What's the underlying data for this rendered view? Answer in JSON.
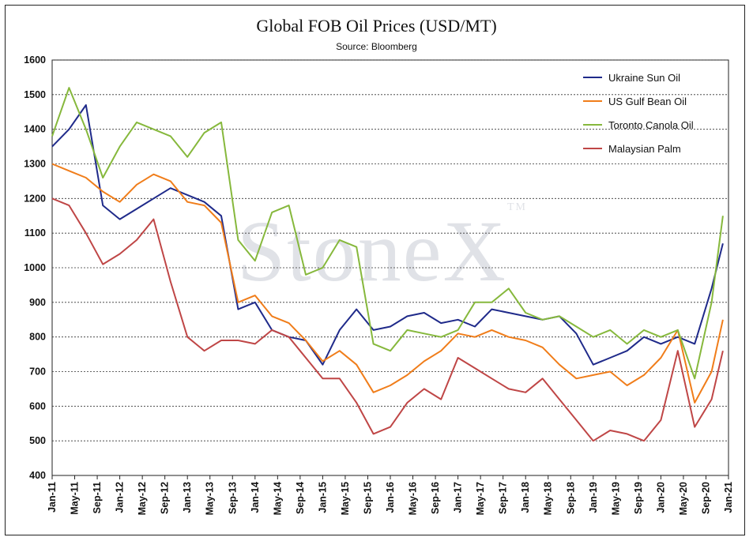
{
  "chart_data": {
    "type": "line",
    "title": "Global FOB Oil Prices (USD/MT)",
    "subtitle": "Source: Bloomberg",
    "watermark": "StoneX",
    "watermark_mark": "TM",
    "ylim": [
      400,
      1600
    ],
    "yticks": [
      400,
      500,
      600,
      700,
      800,
      900,
      1000,
      1100,
      1200,
      1300,
      1400,
      1500,
      1600
    ],
    "xlim": [
      "2011-01",
      "2021-01"
    ],
    "xticks": [
      "Jan-11",
      "May-11",
      "Sep-11",
      "Jan-12",
      "May-12",
      "Sep-12",
      "Jan-13",
      "May-13",
      "Sep-13",
      "Jan-14",
      "May-14",
      "Sep-14",
      "Jan-15",
      "May-15",
      "Sep-15",
      "Jan-16",
      "May-16",
      "Sep-16",
      "Jan-17",
      "May-17",
      "Sep-17",
      "Jan-18",
      "May-18",
      "Sep-18",
      "Jan-19",
      "May-19",
      "Sep-19",
      "Jan-20",
      "May-20",
      "Sep-20",
      "Jan-21"
    ],
    "grid": true,
    "legend_position": "top-right",
    "x": [
      "2011-01",
      "2011-04",
      "2011-07",
      "2011-10",
      "2012-01",
      "2012-04",
      "2012-07",
      "2012-10",
      "2013-01",
      "2013-04",
      "2013-07",
      "2013-10",
      "2014-01",
      "2014-04",
      "2014-07",
      "2014-10",
      "2015-01",
      "2015-04",
      "2015-07",
      "2015-10",
      "2016-01",
      "2016-04",
      "2016-07",
      "2016-10",
      "2017-01",
      "2017-04",
      "2017-07",
      "2017-10",
      "2018-01",
      "2018-04",
      "2018-07",
      "2018-10",
      "2019-01",
      "2019-04",
      "2019-07",
      "2019-10",
      "2020-01",
      "2020-04",
      "2020-07",
      "2020-10",
      "2020-12"
    ],
    "series": [
      {
        "name": "Ukraine Sun Oil",
        "color": "#1f2a8a",
        "values": [
          1350,
          1400,
          1470,
          1180,
          1140,
          1170,
          1200,
          1230,
          1210,
          1190,
          1150,
          880,
          900,
          820,
          800,
          790,
          720,
          820,
          880,
          820,
          830,
          860,
          870,
          840,
          850,
          830,
          880,
          870,
          860,
          850,
          860,
          810,
          720,
          740,
          760,
          800,
          780,
          800,
          780,
          940,
          1070
        ]
      },
      {
        "name": "US Gulf Bean Oil",
        "color": "#f07d1a",
        "values": [
          1300,
          1280,
          1260,
          1220,
          1190,
          1240,
          1270,
          1250,
          1190,
          1180,
          1130,
          900,
          920,
          860,
          840,
          790,
          730,
          760,
          720,
          640,
          660,
          690,
          730,
          760,
          810,
          800,
          820,
          800,
          790,
          770,
          720,
          680,
          690,
          700,
          660,
          690,
          740,
          820,
          610,
          700,
          850
        ]
      },
      {
        "name": "Toronto Canola Oil",
        "color": "#86b83c",
        "values": [
          1380,
          1520,
          1400,
          1260,
          1350,
          1420,
          1400,
          1380,
          1320,
          1390,
          1420,
          1080,
          1020,
          1160,
          1180,
          980,
          1000,
          1080,
          1060,
          780,
          760,
          820,
          810,
          800,
          820,
          900,
          900,
          940,
          870,
          850,
          860,
          830,
          800,
          820,
          780,
          820,
          800,
          820,
          680,
          900,
          1150
        ]
      },
      {
        "name": "Malaysian Palm",
        "color": "#bf4646",
        "values": [
          1200,
          1180,
          1100,
          1010,
          1040,
          1080,
          1140,
          960,
          800,
          760,
          790,
          790,
          780,
          820,
          800,
          740,
          680,
          680,
          610,
          520,
          540,
          610,
          650,
          620,
          740,
          710,
          680,
          650,
          640,
          680,
          620,
          560,
          500,
          530,
          520,
          500,
          560,
          760,
          540,
          620,
          760
        ]
      }
    ]
  }
}
